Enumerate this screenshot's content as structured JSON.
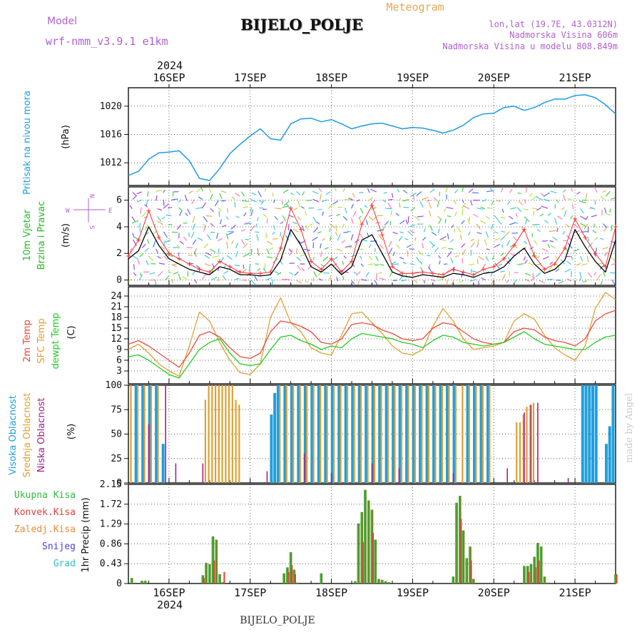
{
  "header": {
    "model_label": "Model",
    "model_name": "wrf-nmm_v3.9.1 e1km",
    "title": "BIJELO_POLJE",
    "subtitle": "Meteogram",
    "coords": "lon,lat (19.7E, 43.0312N)",
    "altitude": "Nadmorska Visina 606m",
    "model_altitude": "Nadmorska Visina u modelu 808.849m",
    "footer_station": "BIJELO_POLJE",
    "watermark": "made by Angel"
  },
  "colors": {
    "pressure": "#1e9be8",
    "wind_speed": "#000000",
    "gust": "#ff3030",
    "temp2m": "#ee4b3c",
    "sfc_temp": "#e0a030",
    "dewpt": "#22cc22",
    "high_cloud": "#1f9fe0",
    "mid_cloud": "#e0a030",
    "low_cloud": "#a0208c",
    "precip_total": "#2bbf3a",
    "precip_conv": "#ee3a3a",
    "precip_freezing": "#f08a30",
    "snow": "#4444dd",
    "hail": "#30c0c0"
  },
  "time_axis": {
    "year_top": "2024",
    "year_bottom": "2024",
    "day_labels": [
      "16SEP",
      "17SEP",
      "18SEP",
      "19SEP",
      "20SEP",
      "21SEP"
    ],
    "start_hour": 0,
    "end_hour": 144,
    "day_hours": [
      12,
      36,
      60,
      84,
      108,
      132
    ]
  },
  "chart_data": [
    {
      "type": "line",
      "panel": "pressure",
      "ylabel_outer": "Pritisak na nivou mora",
      "ylabel_unit": "(hPa)",
      "yticks": [
        "1012",
        "1016",
        "1020"
      ],
      "ylim": [
        1008.8,
        1022.6
      ],
      "grid": true,
      "x": [
        0,
        3,
        6,
        9,
        12,
        15,
        18,
        21,
        24,
        27,
        30,
        33,
        36,
        39,
        42,
        45,
        48,
        51,
        54,
        57,
        60,
        63,
        66,
        69,
        72,
        75,
        78,
        81,
        84,
        87,
        90,
        93,
        96,
        99,
        102,
        105,
        108,
        111,
        114,
        117,
        120,
        123,
        126,
        129,
        132,
        135,
        138,
        141,
        144
      ],
      "series": [
        {
          "values": [
            1010.2,
            1010.8,
            1012.5,
            1013.4,
            1013.5,
            1013.7,
            1012.3,
            1009.8,
            1009.5,
            1011.2,
            1013.3,
            1014.6,
            1015.8,
            1016.8,
            1015.4,
            1015.2,
            1017.5,
            1018.2,
            1018.3,
            1017.8,
            1018.1,
            1017.5,
            1016.8,
            1017.2,
            1017.5,
            1017.6,
            1017.2,
            1016.8,
            1017.0,
            1016.9,
            1016.6,
            1016.2,
            1016.6,
            1017.3,
            1018.4,
            1018.9,
            1019.0,
            1019.8,
            1020.0,
            1019.4,
            1019.8,
            1020.5,
            1021.0,
            1021.0,
            1021.5,
            1021.6,
            1021.2,
            1020.2,
            1018.9
          ]
        }
      ]
    },
    {
      "type": "line",
      "panel": "wind",
      "ylabel_outer": "10m Vjetar Brzina i Pravac",
      "ylabel_unit": "(m/s)",
      "compass": {
        "north": "N",
        "south": "S",
        "west": "W",
        "east": "E"
      },
      "yticks": [
        "0",
        "2",
        "4",
        "6"
      ],
      "ylim": [
        -0.4,
        7.0
      ],
      "grid": true,
      "x": [
        0,
        3,
        6,
        9,
        12,
        15,
        18,
        21,
        24,
        27,
        30,
        33,
        36,
        39,
        42,
        45,
        48,
        51,
        54,
        57,
        60,
        63,
        66,
        69,
        72,
        75,
        78,
        81,
        84,
        87,
        90,
        93,
        96,
        99,
        102,
        105,
        108,
        111,
        114,
        117,
        120,
        123,
        126,
        129,
        132,
        135,
        138,
        141,
        144
      ],
      "series": [
        {
          "name": "speed",
          "values": [
            1.6,
            2.2,
            4.0,
            2.6,
            1.6,
            1.2,
            0.8,
            0.6,
            0.4,
            1.0,
            0.8,
            0.4,
            0.4,
            0.3,
            0.4,
            1.5,
            3.8,
            2.6,
            1.0,
            0.6,
            1.2,
            0.4,
            1.0,
            3.0,
            3.4,
            2.0,
            0.6,
            0.3,
            0.2,
            0.4,
            0.3,
            0.2,
            0.5,
            0.4,
            0.2,
            0.5,
            0.6,
            1.0,
            1.8,
            2.4,
            1.2,
            0.5,
            0.8,
            1.5,
            3.8,
            2.5,
            1.4,
            0.6,
            3.0
          ]
        },
        {
          "name": "gust",
          "values": [
            1.8,
            3.0,
            5.2,
            3.2,
            2.0,
            1.6,
            1.2,
            0.8,
            0.6,
            1.4,
            1.0,
            0.6,
            0.5,
            0.5,
            0.6,
            2.4,
            5.4,
            3.8,
            1.4,
            0.8,
            1.6,
            0.6,
            1.4,
            4.2,
            5.6,
            3.4,
            1.0,
            0.5,
            0.5,
            0.6,
            0.5,
            0.4,
            0.8,
            0.6,
            0.4,
            0.8,
            1.0,
            1.6,
            2.6,
            3.8,
            1.8,
            0.8,
            1.2,
            2.4,
            4.6,
            3.2,
            2.0,
            1.0,
            4.0
          ]
        }
      ]
    },
    {
      "type": "line",
      "panel": "temperature",
      "ylabel_outer": [
        "2m Temp",
        "SFC Temp",
        "dewpt Temp"
      ],
      "ylabel_unit": "(C)",
      "yticks": [
        "3",
        "6",
        "9",
        "12",
        "15",
        "18",
        "21",
        "24"
      ],
      "ylim": [
        -0.6,
        26.6
      ],
      "grid": true,
      "x": [
        0,
        3,
        6,
        9,
        12,
        15,
        18,
        21,
        24,
        27,
        30,
        33,
        36,
        39,
        42,
        45,
        48,
        51,
        54,
        57,
        60,
        63,
        66,
        69,
        72,
        75,
        78,
        81,
        84,
        87,
        90,
        93,
        96,
        99,
        102,
        105,
        108,
        111,
        114,
        117,
        120,
        123,
        126,
        129,
        132,
        135,
        138,
        141,
        144
      ],
      "series": [
        {
          "name": "2m Temp",
          "values": [
            10.5,
            11.5,
            10.0,
            8.0,
            6.0,
            4.0,
            8.0,
            13.0,
            14.0,
            12.5,
            9.5,
            7.0,
            6.5,
            8.0,
            14.0,
            17.0,
            16.5,
            15.5,
            14.0,
            11.0,
            10.5,
            12.0,
            16.0,
            16.5,
            16.0,
            14.5,
            13.5,
            12.0,
            11.5,
            12.0,
            15.0,
            16.5,
            16.0,
            14.0,
            12.0,
            11.0,
            10.5,
            11.0,
            14.0,
            15.0,
            14.5,
            12.5,
            11.5,
            11.0,
            10.0,
            12.0,
            17.0,
            19.0,
            20.0
          ]
        },
        {
          "name": "SFC Temp",
          "values": [
            9.0,
            10.5,
            8.0,
            5.0,
            3.0,
            1.5,
            10.0,
            19.5,
            17.0,
            11.0,
            6.0,
            2.5,
            2.0,
            5.0,
            18.0,
            23.5,
            16.5,
            14.0,
            9.5,
            8.0,
            7.5,
            13.0,
            19.0,
            19.5,
            16.5,
            13.5,
            10.0,
            8.0,
            7.5,
            9.0,
            15.5,
            20.5,
            17.0,
            12.0,
            9.0,
            9.5,
            10.0,
            11.0,
            17.0,
            19.0,
            17.5,
            13.0,
            9.5,
            7.5,
            6.0,
            10.0,
            20.5,
            25.0,
            23.0
          ]
        },
        {
          "name": "dewpt Temp",
          "values": [
            7.0,
            7.5,
            6.0,
            4.0,
            2.0,
            1.0,
            5.0,
            9.0,
            11.0,
            12.0,
            8.0,
            5.0,
            4.5,
            5.0,
            9.0,
            12.5,
            13.0,
            11.5,
            10.5,
            9.0,
            10.0,
            9.5,
            12.0,
            13.5,
            13.0,
            12.5,
            12.0,
            11.0,
            10.5,
            9.5,
            11.5,
            13.0,
            12.5,
            11.0,
            10.5,
            10.0,
            10.5,
            11.0,
            12.5,
            14.0,
            12.0,
            10.5,
            10.0,
            9.5,
            9.0,
            9.0,
            11.0,
            12.5,
            13.0
          ]
        }
      ]
    },
    {
      "type": "bar",
      "panel": "clouds",
      "ylabel_outer": [
        "Visoka Oblacnost",
        "Srednja Oblacnost",
        "Niska Oblacnost"
      ],
      "ylabel_unit": "(%)",
      "yticks": [
        "0",
        "25",
        "50",
        "75",
        "100"
      ],
      "ylim": [
        0,
        100
      ],
      "grid": true,
      "series": [
        {
          "name": "Visoka Oblacnost",
          "x": [
            2,
            4,
            6,
            8,
            10,
            42,
            43,
            44,
            46,
            48,
            50,
            52,
            54,
            56,
            58,
            60,
            62,
            64,
            66,
            68,
            70,
            72,
            74,
            76,
            78,
            80,
            82,
            84,
            86,
            88,
            90,
            92,
            94,
            96,
            100,
            102,
            104,
            106,
            134,
            135,
            136,
            137,
            138,
            141,
            142,
            143
          ],
          "values": [
            100,
            100,
            100,
            100,
            40,
            70,
            92,
            100,
            100,
            100,
            100,
            100,
            100,
            100,
            100,
            100,
            100,
            100,
            100,
            100,
            100,
            100,
            100,
            100,
            100,
            100,
            100,
            100,
            100,
            100,
            100,
            100,
            100,
            100,
            100,
            100,
            100,
            100,
            100,
            100,
            100,
            100,
            100,
            40,
            58,
            100
          ]
        },
        {
          "name": "Srednja Oblacnost",
          "x": [
            1,
            3,
            5,
            7,
            9,
            23,
            24,
            25,
            26,
            27,
            28,
            29,
            30,
            31,
            32,
            33,
            45,
            47,
            49,
            51,
            53,
            55,
            57,
            59,
            61,
            63,
            65,
            67,
            69,
            71,
            73,
            75,
            77,
            79,
            81,
            83,
            85,
            87,
            89,
            91,
            93,
            95,
            97,
            99,
            101,
            103,
            105,
            107,
            115,
            116,
            117,
            118,
            119,
            120
          ],
          "values": [
            100,
            100,
            100,
            100,
            100,
            85,
            100,
            100,
            100,
            100,
            100,
            100,
            100,
            100,
            85,
            80,
            100,
            100,
            100,
            100,
            100,
            100,
            100,
            100,
            100,
            100,
            100,
            100,
            100,
            100,
            100,
            100,
            100,
            100,
            100,
            100,
            100,
            100,
            100,
            100,
            100,
            100,
            100,
            100,
            100,
            100,
            100,
            100,
            62,
            62,
            70,
            78,
            80,
            82
          ]
        },
        {
          "name": "Niska Oblacnost",
          "x": [
            6,
            11,
            14,
            22,
            41,
            52,
            60,
            72,
            80,
            96,
            112,
            117,
            119,
            121,
            130
          ],
          "values": [
            60,
            100,
            20,
            20,
            12,
            30,
            10,
            20,
            15,
            10,
            15,
            72,
            80,
            82,
            5
          ]
        }
      ]
    },
    {
      "type": "bar",
      "panel": "precipitation",
      "legend": [
        "Ukupna Kisa",
        "Konvek.Kisa",
        "Zaledj.Kisa",
        "Snijeg",
        "Grad"
      ],
      "ylabel_unit": "1hr Precip (mm)",
      "yticks": [
        "0",
        "0.43",
        "0.86",
        "1.29",
        "1.72",
        "2.15"
      ],
      "ylim": [
        0,
        2.15
      ],
      "grid": true,
      "series": [
        {
          "name": "Ukupna Kisa",
          "x": [
            1,
            4,
            5,
            22,
            23,
            24,
            25,
            26,
            27,
            28,
            46,
            47,
            48,
            49,
            50,
            57,
            67,
            68,
            69,
            70,
            71,
            72,
            73,
            74,
            75,
            76,
            77,
            96,
            97,
            98,
            99,
            100,
            101,
            102,
            117,
            118,
            119,
            120,
            121,
            122,
            123,
            124,
            144
          ],
          "values": [
            0.12,
            0.06,
            0.06,
            0.18,
            0.45,
            0.42,
            1.02,
            0.95,
            0.2,
            0.03,
            0.22,
            0.35,
            0.68,
            0.3,
            0.02,
            0.22,
            0.05,
            1.3,
            1.55,
            2.03,
            1.8,
            1.6,
            0.95,
            0.1,
            0.08,
            0.05,
            0.03,
            0.15,
            1.75,
            1.9,
            1.15,
            0.55,
            0.8,
            0.1,
            0.38,
            0.38,
            0.42,
            0.58,
            0.88,
            0.8,
            0.15,
            0.02,
            0.2
          ]
        },
        {
          "name": "Konvek.Kisa",
          "x": [
            22,
            25,
            28,
            47,
            48,
            49,
            69,
            72,
            98,
            101,
            118,
            120,
            121,
            144
          ],
          "values": [
            0.12,
            0.5,
            0.25,
            0.25,
            0.4,
            0.2,
            0.9,
            1.1,
            1.4,
            0.5,
            0.25,
            0.35,
            0.5,
            0.2
          ]
        }
      ]
    }
  ]
}
